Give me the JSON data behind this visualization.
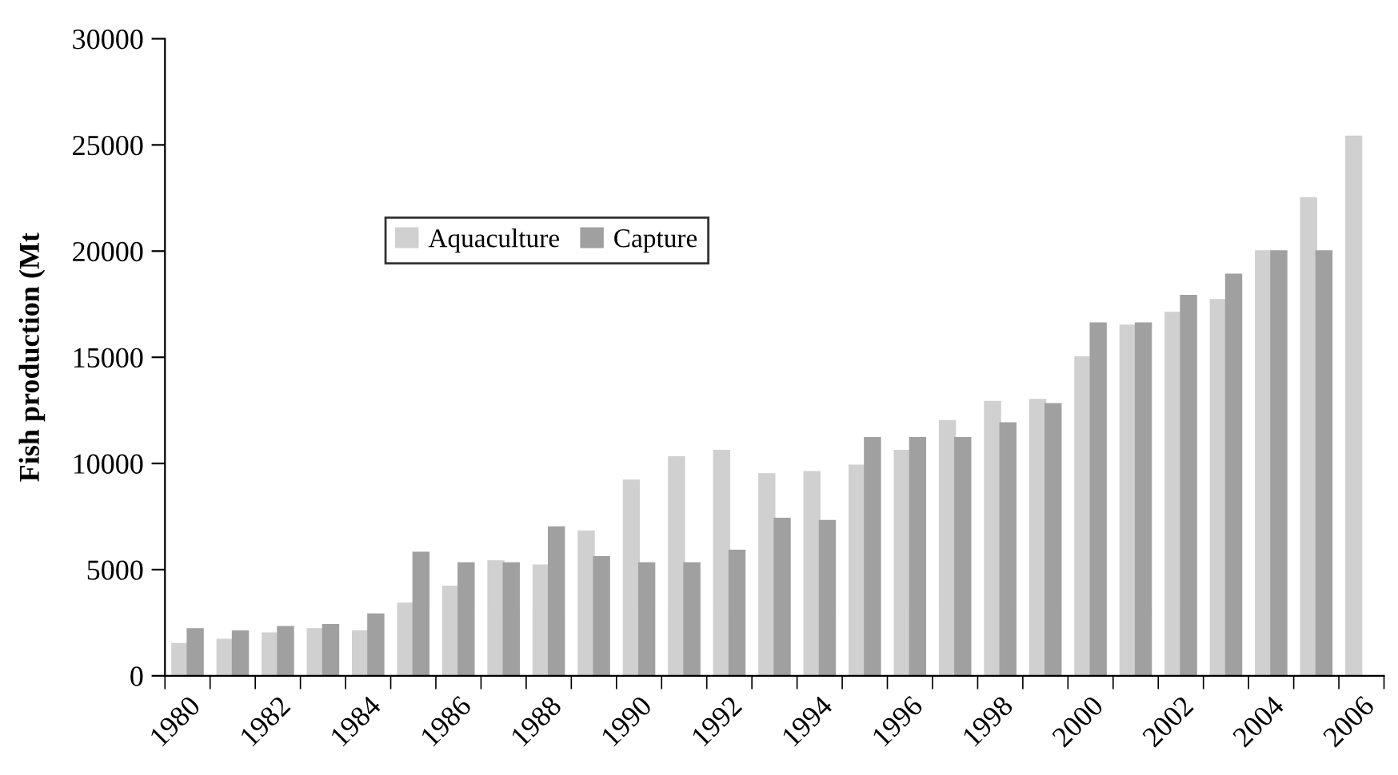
{
  "chart_data": {
    "type": "bar",
    "ylabel": "Fish production (Mt",
    "categories": [
      "1980",
      null,
      "1982",
      null,
      "1984",
      null,
      "1986",
      null,
      "1988",
      null,
      "1990",
      null,
      "1992",
      null,
      "1994",
      null,
      "1996",
      null,
      "1998",
      null,
      "2000",
      null,
      "2002",
      null,
      "2004",
      null,
      "2006"
    ],
    "series": [
      {
        "name": "Aquaculture",
        "color": "#d0d0d0",
        "values": [
          1500,
          1700,
          2000,
          2200,
          2100,
          3400,
          4200,
          5400,
          5200,
          6800,
          9200,
          10300,
          10600,
          9500,
          9600,
          9900,
          10600,
          12000,
          12900,
          13000,
          15000,
          16500,
          17100,
          17700,
          20000,
          22500,
          25400
        ]
      },
      {
        "name": "Capture",
        "color": "#a0a0a0",
        "values": [
          2200,
          2100,
          2300,
          2400,
          2900,
          5800,
          5300,
          5300,
          7000,
          5600,
          5300,
          5300,
          5900,
          7400,
          7300,
          11200,
          11200,
          11200,
          11900,
          12800,
          16600,
          16600,
          17900,
          18900,
          20000,
          20000,
          null
        ]
      }
    ],
    "ylim": [
      0,
      30000
    ],
    "yticks": [
      0,
      5000,
      10000,
      15000,
      20000,
      25000,
      30000
    ],
    "grid": false,
    "legend": "top left"
  }
}
